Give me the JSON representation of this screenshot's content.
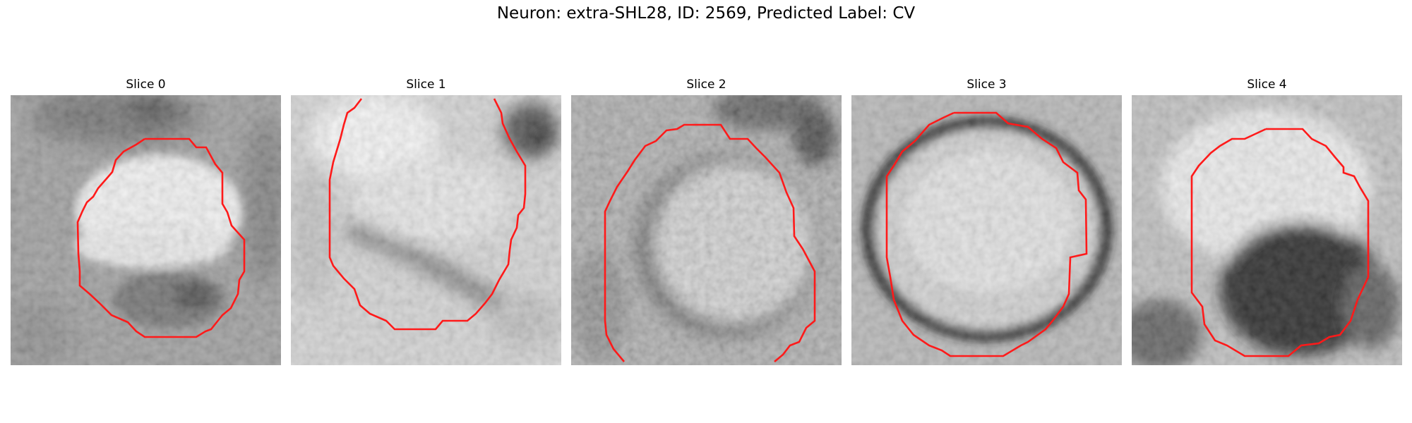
{
  "figure": {
    "title": "Neuron: extra-SHL28, ID: 2569, Predicted Label: CV"
  },
  "slices": [
    {
      "label": "Slice 0",
      "contour_color": "#ff1a1a",
      "contour_icon": "red-segmentation-contour"
    },
    {
      "label": "Slice 1",
      "contour_color": "#ff1a1a",
      "contour_icon": "red-segmentation-contour"
    },
    {
      "label": "Slice 2",
      "contour_color": "#ff1a1a",
      "contour_icon": "red-segmentation-contour"
    },
    {
      "label": "Slice 3",
      "contour_color": "#ff1a1a",
      "contour_icon": "red-segmentation-contour"
    },
    {
      "label": "Slice 4",
      "contour_color": "#ff1a1a",
      "contour_icon": "red-segmentation-contour"
    }
  ]
}
